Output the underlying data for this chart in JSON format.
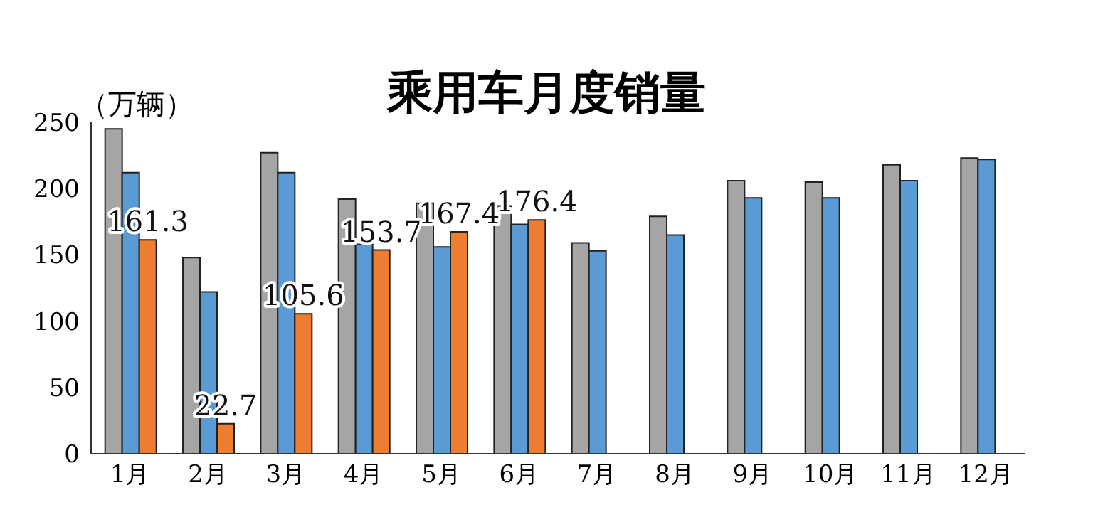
{
  "chart_data": {
    "type": "bar",
    "title": "乘用车月度销量",
    "ylabel": "（万辆）",
    "categories": [
      "1月",
      "2月",
      "3月",
      "4月",
      "5月",
      "6月",
      "7月",
      "8月",
      "9月",
      "10月",
      "11月",
      "12月"
    ],
    "series": [
      {
        "color": "#a5a5a5",
        "values": [
          245,
          148,
          227,
          192,
          189,
          187,
          159,
          179,
          206,
          205,
          218,
          223
        ]
      },
      {
        "color": "#5b9bd5",
        "values": [
          212,
          122,
          212,
          158,
          156,
          173,
          153,
          165,
          193,
          193,
          206,
          222
        ]
      },
      {
        "color": "#ed7d31",
        "values": [
          161.3,
          22.7,
          105.6,
          153.7,
          167.4,
          176.4,
          null,
          null,
          null,
          null,
          null,
          null
        ],
        "value_labels": [
          "161.3",
          "22.7",
          "105.6",
          "153.7",
          "167.4",
          "176.4",
          null,
          null,
          null,
          null,
          null,
          null
        ]
      }
    ],
    "ylim": [
      0,
      250
    ],
    "yticks": [
      0,
      50,
      100,
      150,
      200,
      250
    ],
    "grid": false,
    "legend": false
  }
}
